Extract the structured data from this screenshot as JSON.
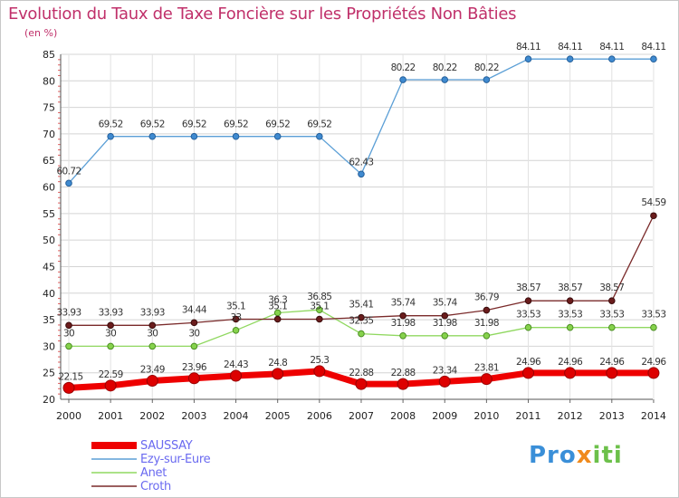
{
  "title": "Evolution du Taux de Taxe Foncière sur les Propriétés Non Bâties",
  "subtitle": "(en %)",
  "brand": {
    "part1": "Pro",
    "part2": "x",
    "part3": "iti"
  },
  "colors": {
    "SAUSSAY": "#ee0000",
    "Ezy-sur-Eure": "#5b9fd6",
    "Anet": "#90d860",
    "Croth": "#7a2a2a"
  },
  "chart_data": {
    "type": "line",
    "title": "Evolution du Taux de Taxe Foncière sur les Propriétés Non Bâties",
    "ylabel": "(en %)",
    "xlabel": "",
    "ylim": [
      20,
      85
    ],
    "yticks": [
      20,
      25,
      30,
      35,
      40,
      45,
      50,
      55,
      60,
      65,
      70,
      75,
      80,
      85
    ],
    "grid": true,
    "legend_position": "bottom-left",
    "x": [
      2000,
      2001,
      2002,
      2003,
      2004,
      2005,
      2006,
      2007,
      2008,
      2009,
      2010,
      2011,
      2012,
      2013,
      2014
    ],
    "series": [
      {
        "name": "SAUSSAY",
        "values": [
          22.15,
          22.59,
          23.49,
          23.96,
          24.43,
          24.8,
          25.3,
          22.88,
          22.88,
          23.34,
          23.81,
          24.96,
          24.96,
          24.96,
          24.96
        ]
      },
      {
        "name": "Ezy-sur-Eure",
        "values": [
          60.72,
          69.52,
          69.52,
          69.52,
          69.52,
          69.52,
          69.52,
          62.43,
          80.22,
          80.22,
          80.22,
          84.11,
          84.11,
          84.11,
          84.11
        ]
      },
      {
        "name": "Anet",
        "values": [
          30,
          30,
          30,
          30,
          33,
          36.3,
          36.85,
          32.35,
          31.98,
          31.98,
          31.98,
          33.53,
          33.53,
          33.53,
          33.53
        ]
      },
      {
        "name": "Croth",
        "values": [
          33.93,
          33.93,
          33.93,
          34.44,
          35.1,
          35.1,
          35.1,
          35.41,
          35.74,
          35.74,
          36.79,
          38.57,
          38.57,
          38.57,
          54.59
        ]
      }
    ],
    "labels": {
      "SAUSSAY": [
        "22.15",
        "22.59",
        "23.49",
        "23.96",
        "24.43",
        "24.8",
        "25.3",
        "22.88",
        "22.88",
        "23.34",
        "23.81",
        "24.96",
        "24.96",
        "24.96",
        "24.96"
      ],
      "Ezy-sur-Eure": [
        "60.72",
        "69.52",
        "69.52",
        "69.52",
        "69.52",
        "69.52",
        "69.52",
        "62.43",
        "80.22",
        "80.22",
        "80.22",
        "84.11",
        "84.11",
        "84.11",
        "84.11"
      ],
      "Anet": [
        "30",
        "30",
        "30",
        "30",
        "33",
        "36.3",
        "36.85",
        "32.35",
        "31.98",
        "31.98",
        "31.98",
        "33.53",
        "33.53",
        "33.53",
        "33.53"
      ],
      "Croth": [
        "33.93",
        "33.93",
        "33.93",
        "34.44",
        "35.1",
        "35.1",
        "35.1",
        "35.41",
        "35.74",
        "35.74",
        "36.79",
        "38.57",
        "38.57",
        "38.57",
        "54.59"
      ]
    }
  }
}
